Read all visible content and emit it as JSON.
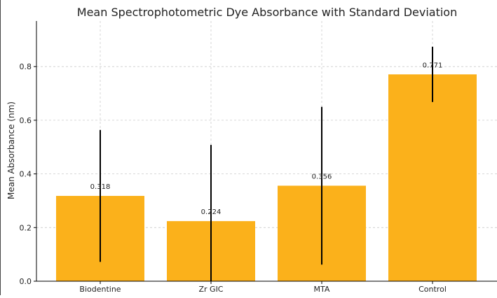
{
  "chart_data": {
    "type": "bar",
    "title": "Mean Spectrophotometric Dye Absorbance with Standard Deviation",
    "xlabel": "",
    "ylabel": "Mean Absorbance (nm)",
    "categories": [
      "Biodentine",
      "Zr GIC",
      "MTA",
      "Control"
    ],
    "values": [
      0.318,
      0.224,
      0.356,
      0.771
    ],
    "value_labels": [
      "0.318",
      "0.224",
      "0.356",
      "0.771"
    ],
    "error": [
      0.246,
      0.284,
      0.294,
      0.103
    ],
    "ylim": [
      0,
      0.97
    ],
    "yticks": [
      0.0,
      0.2,
      0.4,
      0.6,
      0.8
    ],
    "ytick_labels": [
      "0.0",
      "0.2",
      "0.4",
      "0.6",
      "0.8"
    ],
    "grid": true,
    "colors": {
      "bar": "#fbb11b",
      "error_bar": "#000000",
      "grid": "#cccccc"
    }
  }
}
